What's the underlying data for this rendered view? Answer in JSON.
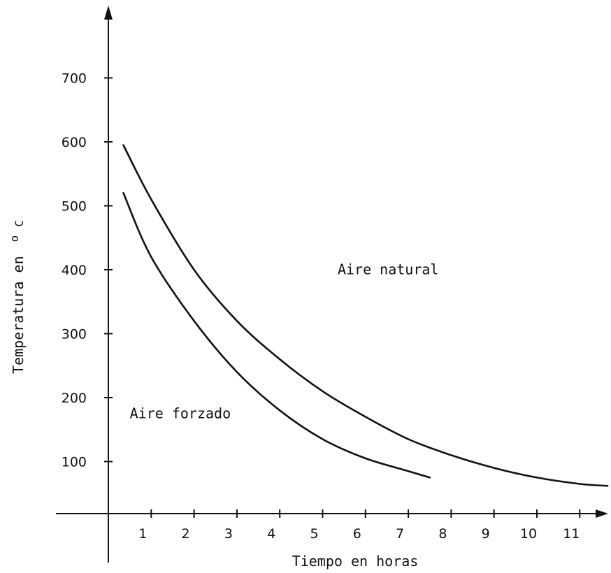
{
  "chart_data": {
    "type": "line",
    "xlabel": "Tiempo en horas",
    "ylabel": "Temperatura en",
    "ylabel_unit_sup": "o",
    "ylabel_unit": "C",
    "x_ticks": [
      "1",
      "2",
      "3",
      "4",
      "5",
      "6",
      "7",
      "8",
      "9",
      "10",
      "11"
    ],
    "y_ticks": [
      "100",
      "200",
      "300",
      "400",
      "500",
      "600",
      "700"
    ],
    "xlim": [
      0,
      11.7
    ],
    "ylim": [
      0,
      780
    ],
    "grid": false,
    "legend": "none",
    "series": [
      {
        "name": "Aire natural",
        "x": [
          0.35,
          1,
          2,
          3,
          4,
          5,
          6,
          7,
          8,
          9,
          10,
          11,
          11.65
        ],
        "y": [
          595,
          510,
          400,
          320,
          260,
          210,
          170,
          135,
          110,
          90,
          75,
          65,
          62
        ]
      },
      {
        "name": "Aire forzado",
        "x": [
          0.35,
          1,
          2,
          3,
          4,
          5,
          6,
          7,
          7.5
        ],
        "y": [
          520,
          420,
          320,
          240,
          180,
          135,
          105,
          85,
          75
        ]
      }
    ],
    "annotations": [
      {
        "text": "Aire natural",
        "x": 5.35,
        "y": 393
      },
      {
        "text": "Aire forzado",
        "x": 0.5,
        "y": 168
      }
    ]
  }
}
